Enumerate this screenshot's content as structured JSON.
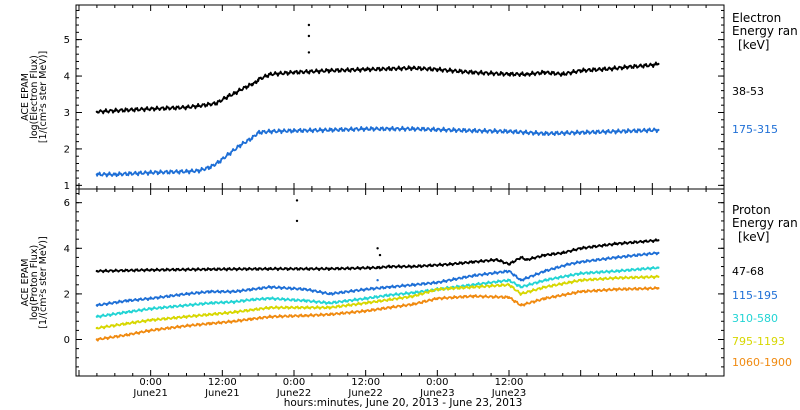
{
  "chart_data": [
    {
      "type": "scatter",
      "panel": "electron",
      "ylabel_lines": [
        "ACE EPAM",
        "log(Electron Flux)",
        "[1/(cm²s ster MeV)]"
      ],
      "ylim": [
        0.9,
        5.95
      ],
      "yticks": [
        1,
        2,
        3,
        4,
        5
      ],
      "legend_title": [
        "Electron",
        "Energy ran",
        "[keV]"
      ],
      "series": [
        {
          "name": "38-53",
          "color": "#000000",
          "x": [
            -9,
            -6,
            0,
            6,
            8,
            11,
            13,
            14,
            15,
            16,
            17,
            17.6,
            18,
            20,
            24,
            30,
            36,
            40,
            44,
            48,
            54,
            60,
            63,
            66,
            69,
            72,
            77,
            80,
            84,
            85
          ],
          "values": [
            3.02,
            3.05,
            3.1,
            3.14,
            3.18,
            3.25,
            3.45,
            3.52,
            3.62,
            3.7,
            3.78,
            3.82,
            3.9,
            4.05,
            4.1,
            4.15,
            4.18,
            4.2,
            4.22,
            4.18,
            4.1,
            4.05,
            4.05,
            4.1,
            4.05,
            4.15,
            4.2,
            4.25,
            4.3,
            4.33
          ],
          "spikes": [
            {
              "x": 26.5,
              "y": 5.4
            },
            {
              "x": 26.5,
              "y": 5.1
            },
            {
              "x": 26.5,
              "y": 4.65
            }
          ]
        },
        {
          "name": "175-315",
          "color": "#1e6fd6",
          "x": [
            -9,
            -6,
            0,
            6,
            8,
            10,
            11.5,
            13,
            15,
            17,
            18,
            20,
            24,
            30,
            36,
            40,
            44,
            48,
            54,
            60,
            66,
            72,
            78,
            85
          ],
          "values": [
            1.3,
            1.3,
            1.35,
            1.38,
            1.4,
            1.5,
            1.65,
            1.85,
            2.1,
            2.3,
            2.45,
            2.48,
            2.5,
            2.52,
            2.55,
            2.55,
            2.55,
            2.53,
            2.5,
            2.48,
            2.42,
            2.45,
            2.48,
            2.52
          ],
          "spikes": []
        }
      ]
    },
    {
      "type": "scatter",
      "panel": "proton",
      "ylabel_lines": [
        "ACE EPAM",
        "log(Proton Flux)",
        "[1/(cm²s ster MeV)]"
      ],
      "ylim": [
        -1.6,
        6.6
      ],
      "yticks": [
        0,
        2,
        4,
        6
      ],
      "legend_title": [
        "Proton",
        "Energy ran",
        "[keV]"
      ],
      "series": [
        {
          "name": "47-68",
          "color": "#000000",
          "x": [
            -9,
            0,
            10,
            20,
            30,
            38,
            40,
            44,
            50,
            54,
            58,
            60,
            62,
            63,
            66,
            69,
            72,
            78,
            85
          ],
          "values": [
            3.0,
            3.05,
            3.08,
            3.1,
            3.1,
            3.15,
            3.2,
            3.2,
            3.3,
            3.4,
            3.5,
            3.3,
            3.6,
            3.5,
            3.7,
            3.8,
            4.0,
            4.2,
            4.35
          ],
          "spikes": [
            {
              "x": 24.5,
              "y": 6.1
            },
            {
              "x": 24.5,
              "y": 5.2
            },
            {
              "x": 38.0,
              "y": 4.0
            },
            {
              "x": 38.4,
              "y": 3.7
            }
          ]
        },
        {
          "name": "115-195",
          "color": "#1e6fd6",
          "x": [
            -9,
            -4,
            0,
            6,
            10,
            14,
            17,
            20,
            26,
            30,
            36,
            40,
            44,
            48,
            54,
            60,
            62,
            66,
            70,
            72,
            78,
            85
          ],
          "values": [
            1.5,
            1.7,
            1.8,
            2.0,
            2.1,
            2.1,
            2.2,
            2.3,
            2.2,
            2.0,
            2.2,
            2.3,
            2.4,
            2.5,
            2.8,
            3.0,
            2.6,
            3.0,
            3.3,
            3.4,
            3.6,
            3.8
          ],
          "spikes": [
            {
              "x": 38.0,
              "y": 2.6
            }
          ]
        },
        {
          "name": "310-580",
          "color": "#22d4d4",
          "x": [
            -9,
            -4,
            0,
            6,
            10,
            14,
            17,
            20,
            26,
            30,
            36,
            40,
            44,
            48,
            54,
            60,
            62,
            66,
            70,
            72,
            78,
            85
          ],
          "values": [
            1.0,
            1.2,
            1.35,
            1.5,
            1.6,
            1.65,
            1.75,
            1.8,
            1.7,
            1.6,
            1.8,
            1.95,
            2.05,
            2.2,
            2.4,
            2.6,
            2.3,
            2.6,
            2.8,
            2.9,
            3.0,
            3.15
          ],
          "spikes": []
        },
        {
          "name": "795-1193",
          "color": "#d7d700",
          "x": [
            -9,
            -4,
            0,
            6,
            10,
            14,
            17,
            20,
            26,
            30,
            36,
            40,
            44,
            48,
            54,
            60,
            62,
            66,
            70,
            72,
            78,
            85
          ],
          "values": [
            0.5,
            0.7,
            0.85,
            1.0,
            1.1,
            1.2,
            1.3,
            1.4,
            1.4,
            1.4,
            1.6,
            1.75,
            1.9,
            2.2,
            2.3,
            2.4,
            2.0,
            2.3,
            2.5,
            2.6,
            2.7,
            2.75
          ],
          "spikes": []
        },
        {
          "name": "1060-1900",
          "color": "#f08a10",
          "x": [
            -9,
            -4,
            0,
            6,
            10,
            14,
            17,
            20,
            26,
            30,
            36,
            40,
            44,
            48,
            54,
            60,
            62,
            66,
            70,
            72,
            78,
            85
          ],
          "values": [
            0.0,
            0.2,
            0.4,
            0.6,
            0.7,
            0.8,
            0.9,
            1.0,
            1.05,
            1.1,
            1.25,
            1.4,
            1.55,
            1.8,
            1.9,
            1.85,
            1.5,
            1.8,
            2.0,
            2.1,
            2.2,
            2.25
          ],
          "spikes": []
        }
      ]
    }
  ],
  "x_axis": {
    "range_hours": [
      -12.5,
      96
    ],
    "ticks": [
      {
        "hour": 0,
        "time": "0:00",
        "day": "June21"
      },
      {
        "hour": 12,
        "time": "12:00",
        "day": "June21"
      },
      {
        "hour": 24,
        "time": "0:00",
        "day": "June22"
      },
      {
        "hour": 36,
        "time": "12:00",
        "day": "June22"
      },
      {
        "hour": 48,
        "time": "0:00",
        "day": "June23"
      },
      {
        "hour": 60,
        "time": "12:00",
        "day": "June23"
      }
    ],
    "label": "hours:minutes, June 20, 2013 - June 23, 2013"
  }
}
